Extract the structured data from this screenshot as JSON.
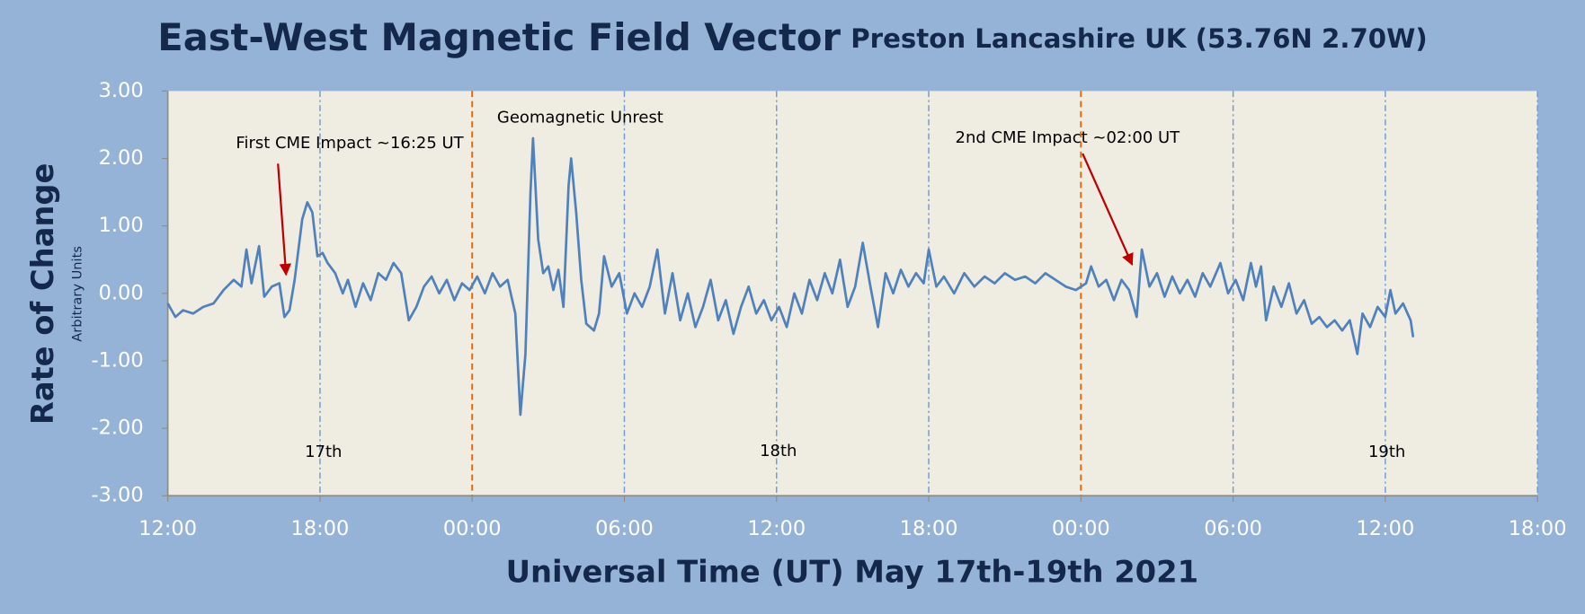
{
  "chart_data": {
    "type": "line",
    "title": "East-West Magnetic Field Vector",
    "subtitle": "Preston Lancashire UK (53.76N 2.70W)",
    "x_label": "Universal Time (UT) May 17th-19th 2021",
    "y_label": "Rate of Change",
    "y_sublabel": "Arbitrary Units",
    "xlim": [
      0,
      54
    ],
    "xticks": [
      {
        "value": 0,
        "label": "12:00"
      },
      {
        "value": 6,
        "label": "18:00"
      },
      {
        "value": 12,
        "label": "00:00"
      },
      {
        "value": 18,
        "label": "06:00"
      },
      {
        "value": 24,
        "label": "12:00"
      },
      {
        "value": 30,
        "label": "18:00"
      },
      {
        "value": 36,
        "label": "00:00"
      },
      {
        "value": 42,
        "label": "06:00"
      },
      {
        "value": 48,
        "label": "12:00"
      },
      {
        "value": 54,
        "label": "18:00"
      }
    ],
    "ylim": [
      -3,
      3
    ],
    "yticks": [
      {
        "value": 3,
        "label": "3.00"
      },
      {
        "value": 2,
        "label": "2.00"
      },
      {
        "value": 1,
        "label": "1.00"
      },
      {
        "value": 0,
        "label": "0.00"
      },
      {
        "value": -1,
        "label": "-1.00"
      },
      {
        "value": -2,
        "label": "-2.00"
      },
      {
        "value": -3,
        "label": "-3.00"
      }
    ],
    "grid": "x",
    "grid_color": "#6f9ad6",
    "vlines": {
      "values": [
        12,
        36
      ],
      "color": "#e46c0a"
    },
    "annotations": [
      "First CME Impact ~16:25 UT",
      "Geomagnetic Unrest",
      "2nd CME Impact ~02:00 UT",
      "17th",
      "18th",
      "19th"
    ],
    "series": [
      {
        "name": "East-West",
        "color": "#4f81bd",
        "x": [
          0,
          0.3,
          0.6,
          1.0,
          1.4,
          1.8,
          2.2,
          2.6,
          2.9,
          3.1,
          3.3,
          3.6,
          3.8,
          4.1,
          4.4,
          4.6,
          4.8,
          5.0,
          5.3,
          5.5,
          5.7,
          5.9,
          6.1,
          6.3,
          6.6,
          6.9,
          7.1,
          7.4,
          7.7,
          8.0,
          8.3,
          8.6,
          8.9,
          9.2,
          9.5,
          9.8,
          10.1,
          10.4,
          10.7,
          11.0,
          11.3,
          11.6,
          11.9,
          12.2,
          12.5,
          12.8,
          13.1,
          13.4,
          13.7,
          13.9,
          14.1,
          14.3,
          14.4,
          14.6,
          14.8,
          15.0,
          15.2,
          15.4,
          15.6,
          15.8,
          15.9,
          16.1,
          16.3,
          16.5,
          16.8,
          17.0,
          17.2,
          17.5,
          17.8,
          18.1,
          18.4,
          18.7,
          19.0,
          19.3,
          19.6,
          19.9,
          20.2,
          20.5,
          20.8,
          21.1,
          21.4,
          21.7,
          22.0,
          22.3,
          22.6,
          22.9,
          23.2,
          23.5,
          23.8,
          24.1,
          24.4,
          24.7,
          25.0,
          25.3,
          25.6,
          25.9,
          26.2,
          26.5,
          26.8,
          27.1,
          27.4,
          27.7,
          28.0,
          28.3,
          28.6,
          28.9,
          29.2,
          29.5,
          29.8,
          30.0,
          30.3,
          30.6,
          31.0,
          31.4,
          31.8,
          32.2,
          32.6,
          33.0,
          33.4,
          33.8,
          34.2,
          34.6,
          35.0,
          35.4,
          35.8,
          36.2,
          36.4,
          36.7,
          37.0,
          37.3,
          37.6,
          37.9,
          38.2,
          38.4,
          38.7,
          39.0,
          39.3,
          39.6,
          39.9,
          40.2,
          40.5,
          40.8,
          41.1,
          41.5,
          41.8,
          42.1,
          42.4,
          42.7,
          42.9,
          43.1,
          43.3,
          43.6,
          43.9,
          44.2,
          44.5,
          44.8,
          45.1,
          45.4,
          45.7,
          46.0,
          46.3,
          46.6,
          46.9,
          47.1,
          47.4,
          47.7,
          48.0,
          48.2,
          48.4,
          48.7,
          49.0,
          49.1
        ],
        "values": [
          -0.15,
          -0.35,
          -0.25,
          -0.3,
          -0.2,
          -0.15,
          0.05,
          0.2,
          0.1,
          0.65,
          0.15,
          0.7,
          -0.05,
          0.1,
          0.15,
          -0.35,
          -0.25,
          0.2,
          1.1,
          1.35,
          1.2,
          0.55,
          0.6,
          0.45,
          0.3,
          0.0,
          0.2,
          -0.2,
          0.15,
          -0.1,
          0.3,
          0.2,
          0.45,
          0.3,
          -0.4,
          -0.2,
          0.1,
          0.25,
          0.0,
          0.2,
          -0.1,
          0.15,
          0.05,
          0.25,
          0.0,
          0.3,
          0.1,
          0.2,
          -0.3,
          -1.8,
          -0.9,
          1.5,
          2.3,
          0.8,
          0.3,
          0.4,
          0.05,
          0.35,
          -0.2,
          1.6,
          2.0,
          1.2,
          0.2,
          -0.45,
          -0.55,
          -0.3,
          0.55,
          0.1,
          0.3,
          -0.3,
          0.0,
          -0.2,
          0.1,
          0.65,
          -0.3,
          0.3,
          -0.4,
          0.0,
          -0.5,
          -0.2,
          0.2,
          -0.4,
          -0.1,
          -0.6,
          -0.2,
          0.1,
          -0.3,
          -0.1,
          -0.4,
          -0.2,
          -0.5,
          0.0,
          -0.3,
          0.2,
          -0.1,
          0.3,
          0.0,
          0.5,
          -0.2,
          0.1,
          0.75,
          0.1,
          -0.5,
          0.3,
          0.0,
          0.35,
          0.1,
          0.3,
          0.15,
          0.65,
          0.1,
          0.25,
          0.0,
          0.3,
          0.1,
          0.25,
          0.15,
          0.3,
          0.2,
          0.25,
          0.15,
          0.3,
          0.2,
          0.1,
          0.05,
          0.15,
          0.4,
          0.1,
          0.2,
          -0.1,
          0.2,
          0.05,
          -0.35,
          0.65,
          0.1,
          0.3,
          -0.05,
          0.25,
          0.0,
          0.2,
          -0.05,
          0.3,
          0.1,
          0.45,
          0.0,
          0.2,
          -0.1,
          0.45,
          0.1,
          0.4,
          -0.4,
          0.1,
          -0.2,
          0.15,
          -0.3,
          -0.1,
          -0.45,
          -0.35,
          -0.5,
          -0.4,
          -0.55,
          -0.4,
          -0.9,
          -0.3,
          -0.5,
          -0.2,
          -0.35,
          0.05,
          -0.3,
          -0.15,
          -0.4,
          -0.65
        ]
      }
    ]
  }
}
